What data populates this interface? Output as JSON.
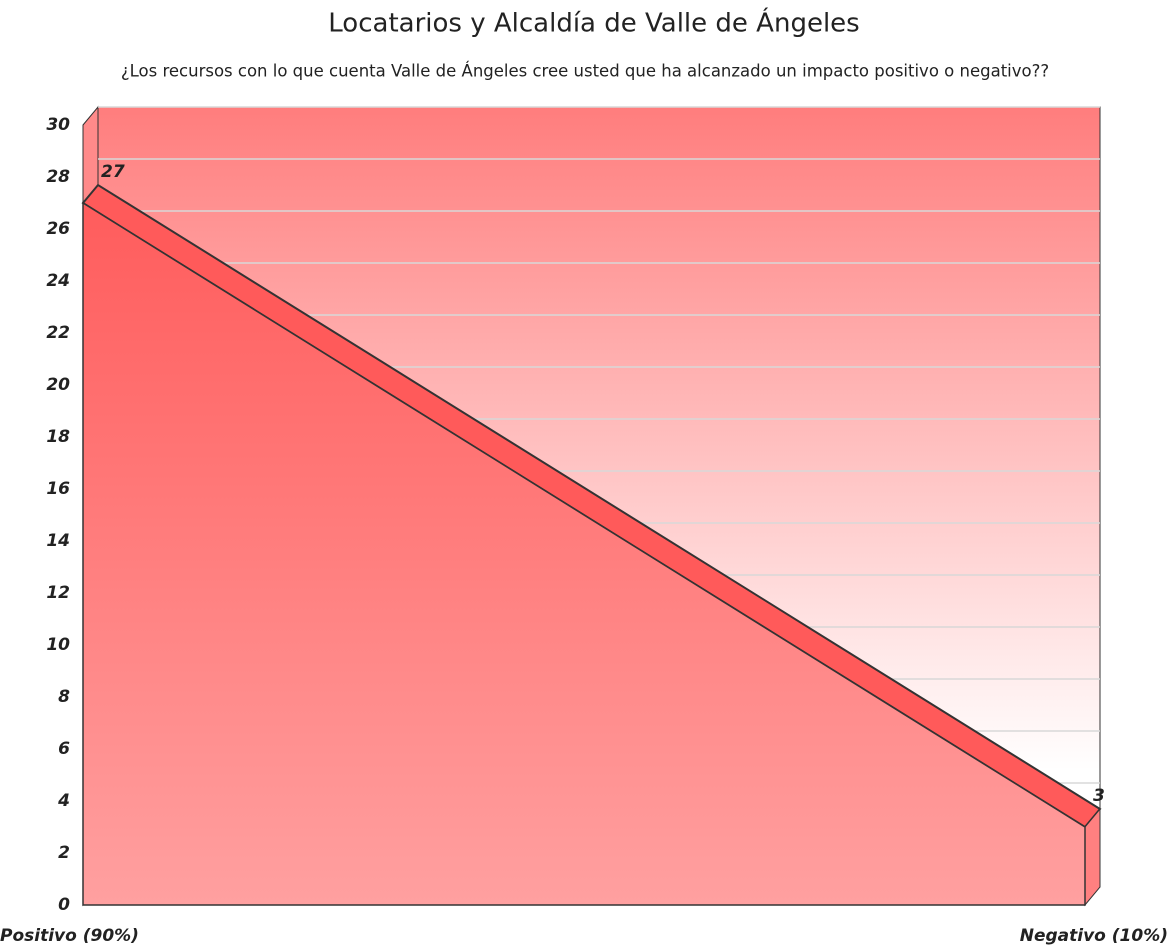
{
  "chart_data": {
    "type": "area3d",
    "title": "Locatarios y Alcaldía de Valle de Ángeles",
    "subtitle": "¿Los recursos con lo que cuenta Valle de Ángeles cree usted que ha alcanzado un impacto positivo o negativo??",
    "categories": [
      "Positivo (90%)",
      "Negativo (10%)"
    ],
    "values": [
      27,
      3
    ],
    "color": "#ff5a5a",
    "ylim": [
      0,
      30
    ],
    "yticks": [
      0,
      2,
      4,
      6,
      8,
      10,
      12,
      14,
      16,
      18,
      20,
      22,
      24,
      26,
      28,
      30
    ],
    "grid": true
  }
}
